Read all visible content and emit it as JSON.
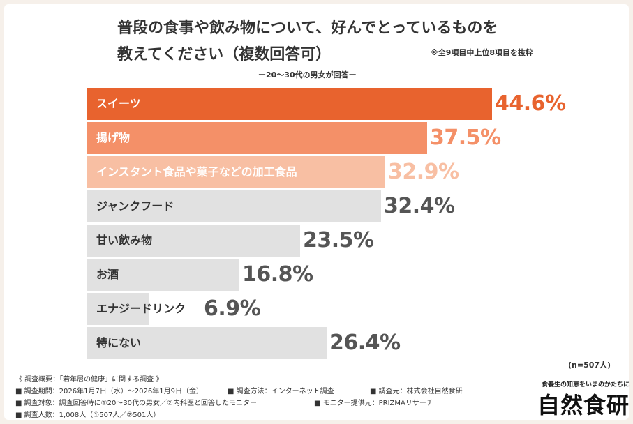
{
  "title_line1": "普段の食事や飲み物について、好んでとっているものを",
  "title_line2": "教えてください（複数回答可）",
  "note": "※全9項目中上位8項目を抜粋",
  "subtitle": "ー20～30代の男女が回答ー",
  "sample_note": "(n=507人)",
  "colors": {
    "top1": "#e8632e",
    "top2": "#f49068",
    "top3": "#f8bfa3",
    "other": "#e1e1e1",
    "value_other": "#555555"
  },
  "chart_data": {
    "type": "bar",
    "orientation": "horizontal",
    "categories": [
      "スイーツ",
      "揚げ物",
      "インスタント食品や菓子などの加工食品",
      "ジャンクフード",
      "甘い飲み物",
      "お酒",
      "エナジードリンク",
      "特にない"
    ],
    "values": [
      44.6,
      37.5,
      32.9,
      32.4,
      23.5,
      16.8,
      6.9,
      26.4
    ],
    "value_labels": [
      "44.6%",
      "37.5%",
      "32.9%",
      "32.4%",
      "23.5%",
      "16.8%",
      "6.9%",
      "26.4%"
    ],
    "unit": "%",
    "xlim": [
      0,
      50
    ]
  },
  "footer": {
    "heading": "《 調査概要：「若年層の健康」に関する調査 》",
    "period": "■ 調査期間：2026年1月7日（水）～2026年1月9日（金）",
    "method": "■ 調査方法：インターネット調査",
    "org": "■ 調査元：株式会社自然食研",
    "target": "■ 調査対象：調査回答時に①20～30代の男女／②内科医と回答したモニター",
    "provider": "■ モニター提供元：PRIZMAリサーチ",
    "count": "■ 調査人数：1,008人（①507人／②501人）"
  },
  "brand": {
    "tagline": "食養生の知恵をいまのかたちに",
    "name": "自然食研"
  }
}
